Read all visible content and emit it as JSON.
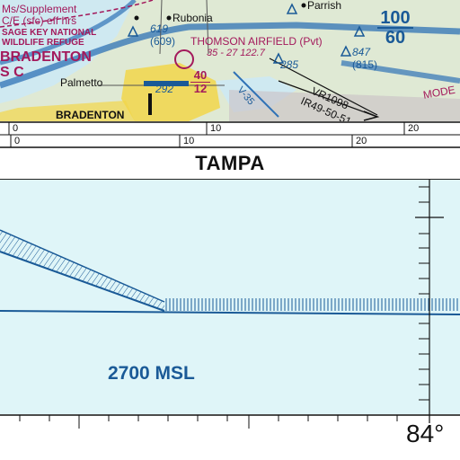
{
  "chart_top": {
    "airspace_note_lines": [
      "Ms/Supplement",
      "C/E (sfc) eff hrs"
    ],
    "refuge_lines": [
      "SAGE KEY NATIONAL",
      "WILDLIFE REFUGE"
    ],
    "city_bradenton_big": "BRADENTON",
    "class_label": "S C",
    "elev_619": "619",
    "elev_609": "(609)",
    "rubonia": "Rubonia",
    "parrish": "Parrish",
    "maxelev": [
      "100",
      "60"
    ],
    "airfield_name": "THOMSON AIRFIELD (Pvt)",
    "airfield_info": "35 - 27 122.7",
    "elev_285": "285",
    "elev_847": "847",
    "elev_815": "(815)",
    "palmetto": "Palmetto",
    "alt_40": "40",
    "alt_12": "12",
    "elev_292": "292",
    "route_vr": "VR1098",
    "route_ir": "IR49-50-51",
    "v35": "V-35",
    "mode": "MODE",
    "bradenton_small": "BRADENTON"
  },
  "scale": {
    "top_ticks": [
      "0",
      "10",
      "20"
    ],
    "bottom_ticks": [
      "0",
      "10",
      "20"
    ]
  },
  "inset": {
    "title": "TAMPA",
    "altitude_label": "2700 MSL",
    "longitude_label": "84°"
  },
  "colors": {
    "magenta": "#a3195b",
    "airspace_blue": "#1a5a97",
    "water": "#dff5f8",
    "land": "#dfe9d4",
    "urban": "#f2d64a"
  }
}
